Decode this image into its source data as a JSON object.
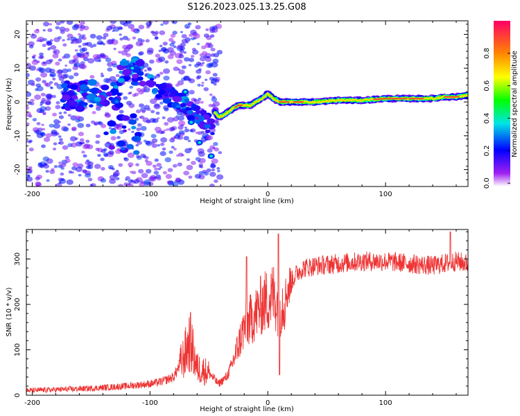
{
  "figure": {
    "title": "S126.2023.025.13.25.G08"
  },
  "chart_data": [
    {
      "type": "heatmap",
      "xlabel": "Height of straight line (km)",
      "ylabel": "Frequency (Hz)",
      "xlim": [
        -205,
        170
      ],
      "ylim": [
        -25,
        24
      ],
      "xticks": [
        -200,
        -100,
        0,
        100
      ],
      "yticks": [
        -20,
        -10,
        0,
        10,
        20
      ],
      "ridge": {
        "description_free": true,
        "x": [
          -45,
          -42,
          -38,
          -34,
          -30,
          -25,
          -20,
          -15,
          -10,
          -5,
          0,
          5,
          10,
          20,
          30,
          40,
          60,
          80,
          100,
          120,
          140,
          150,
          160,
          170
        ],
        "y": [
          -3,
          -4.5,
          -4,
          -3,
          -2,
          -1,
          -1,
          -1,
          0,
          1,
          2.5,
          1,
          0,
          0,
          0,
          0,
          0.5,
          0.5,
          1,
          1,
          1,
          1.5,
          1.5,
          2
        ]
      },
      "grid": false,
      "colorbar": {
        "label": "Normalized spectral amplitude",
        "range": [
          0,
          1
        ],
        "ticks": [
          "0.0",
          "0.2",
          "0.4",
          "0.6",
          "0.8"
        ]
      }
    },
    {
      "type": "line",
      "xlabel": "Height of straight line (km)",
      "ylabel": "SNR (10 * v/v)",
      "xlim": [
        -205,
        170
      ],
      "ylim": [
        0,
        365
      ],
      "xticks": [
        -200,
        -100,
        0,
        100
      ],
      "yticks": [
        0,
        100,
        200,
        300
      ],
      "color": "#ee3333",
      "grid": false,
      "series_trend": {
        "x": [
          -205,
          -150,
          -120,
          -100,
          -90,
          -80,
          -72,
          -66,
          -60,
          -50,
          -42,
          -35,
          -30,
          -25,
          -20,
          -10,
          -5,
          0,
          5,
          10,
          15,
          20,
          25,
          30,
          40,
          60,
          80,
          100,
          120,
          140,
          160,
          170
        ],
        "y": [
          10,
          15,
          20,
          25,
          30,
          40,
          80,
          120,
          60,
          50,
          25,
          40,
          70,
          110,
          150,
          180,
          200,
          210,
          220,
          190,
          220,
          250,
          270,
          280,
          285,
          290,
          295,
          295,
          290,
          285,
          295,
          290
        ]
      }
    }
  ]
}
